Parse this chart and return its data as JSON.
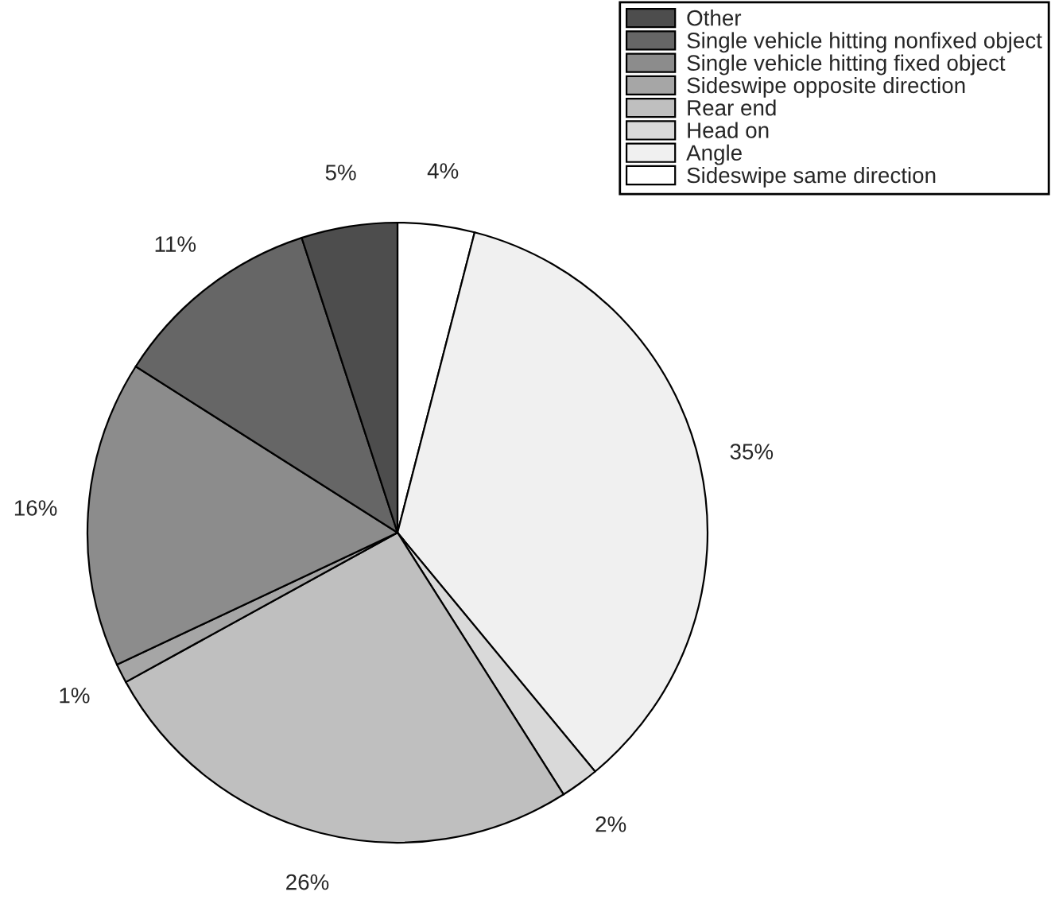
{
  "chart_data": {
    "type": "pie",
    "categories": [
      "Sideswipe same direction",
      "Angle",
      "Head on",
      "Rear end",
      "Sideswipe opposite direction",
      "Single vehicle hitting fixed object",
      "Single vehicle hitting nonfixed object",
      "Other"
    ],
    "values": [
      4,
      35,
      2,
      26,
      1,
      16,
      11,
      5
    ],
    "value_labels": [
      "4%",
      "35%",
      "2%",
      "26%",
      "1%",
      "16%",
      "11%",
      "5%"
    ],
    "colors": [
      "#ffffff",
      "#f0f0f0",
      "#d9d9d9",
      "#bfbfbf",
      "#a6a6a6",
      "#8c8c8c",
      "#666666",
      "#4d4d4d"
    ],
    "legend": "top right"
  }
}
